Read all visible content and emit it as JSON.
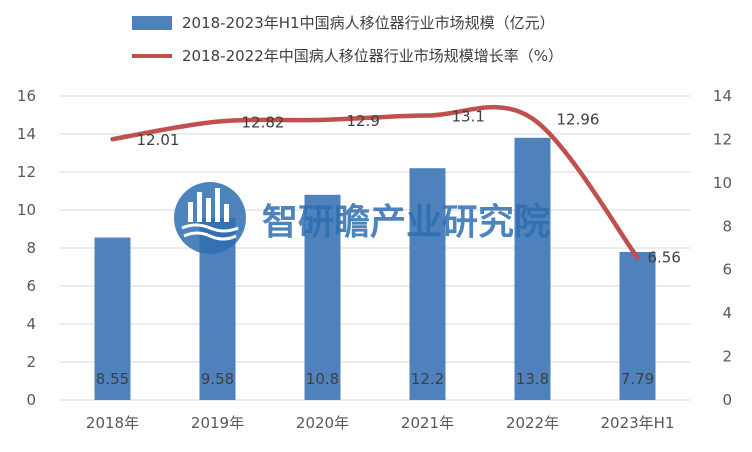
{
  "chart_data": {
    "type": "bar+line",
    "categories": [
      "2018年",
      "2019年",
      "2020年",
      "2021年",
      "2022年",
      "2023年H1"
    ],
    "series": [
      {
        "name": "2018-2023年H1中国病人移位器行业市场规模（亿元）",
        "type": "bar",
        "axis": "left",
        "values": [
          8.55,
          9.58,
          10.8,
          12.2,
          13.8,
          7.79
        ],
        "labels": [
          "8.55",
          "9.58",
          "10.8",
          "12.2",
          "13.8",
          "7.79"
        ],
        "color": "#4f81bd"
      },
      {
        "name": "2018-2022年中国病人移位器行业市场规模增长率（%）",
        "type": "line",
        "axis": "right",
        "values": [
          12.01,
          12.82,
          12.9,
          13.1,
          12.96,
          6.56
        ],
        "labels": [
          "12.01",
          "12.82",
          "12.9",
          "13.1",
          "12.96",
          "6.56"
        ],
        "color": "#c0504d"
      }
    ],
    "y_left": {
      "min": 0,
      "max": 16,
      "step": 2,
      "ticks": [
        "0",
        "2",
        "4",
        "6",
        "8",
        "10",
        "12",
        "14",
        "16"
      ]
    },
    "y_right": {
      "min": 0,
      "max": 14,
      "step": 2,
      "ticks": [
        "0",
        "2",
        "4",
        "6",
        "8",
        "10",
        "12",
        "14"
      ]
    },
    "grid": true,
    "legend_position": "top-center"
  },
  "watermark": {
    "text": "智研瞻产业研究院",
    "logo": "zhiyanzhan-logo-icon"
  }
}
